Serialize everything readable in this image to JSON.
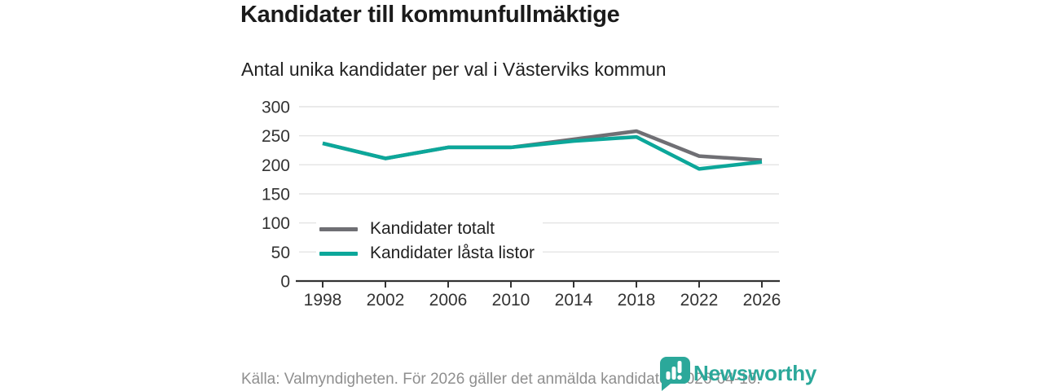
{
  "header": {
    "title": "Kandidater till kommunfullmäktige",
    "subtitle": "Antal unika kandidater per val i Västerviks kommun"
  },
  "chart_data": {
    "type": "line",
    "title": "Kandidater till kommunfullmäktige",
    "subtitle": "Antal unika kandidater per val i Västerviks kommun",
    "x": [
      1998,
      2002,
      2006,
      2010,
      2014,
      2018,
      2022,
      2026
    ],
    "xlabel": "",
    "ylabel": "",
    "ylim": [
      0,
      300
    ],
    "yticks": [
      0,
      50,
      100,
      150,
      200,
      250,
      300
    ],
    "grid": true,
    "legend_position": "inside-left",
    "series": [
      {
        "name": "Kandidater totalt",
        "color": "#6f6f74",
        "values": [
          237,
          211,
          230,
          230,
          244,
          258,
          215,
          208
        ]
      },
      {
        "name": "Kandidater låsta listor",
        "color": "#0ca79a",
        "values": [
          237,
          211,
          230,
          230,
          241,
          248,
          193,
          205
        ]
      }
    ]
  },
  "footer": {
    "source": "Källa: Valmyndigheten. För 2026 gäller det anmälda kandidater 2026-04-10."
  },
  "branding": {
    "name": "Newsworthy",
    "color": "#2ba89a",
    "icon": "bar-chart-speech-bubble-icon"
  },
  "colors": {
    "background": "#ffffff",
    "grid": "#e4e4e4",
    "axis": "#333333",
    "tick_label": "#333333",
    "title_text": "#1b1b1b",
    "footer_text": "#8f8f8f"
  }
}
